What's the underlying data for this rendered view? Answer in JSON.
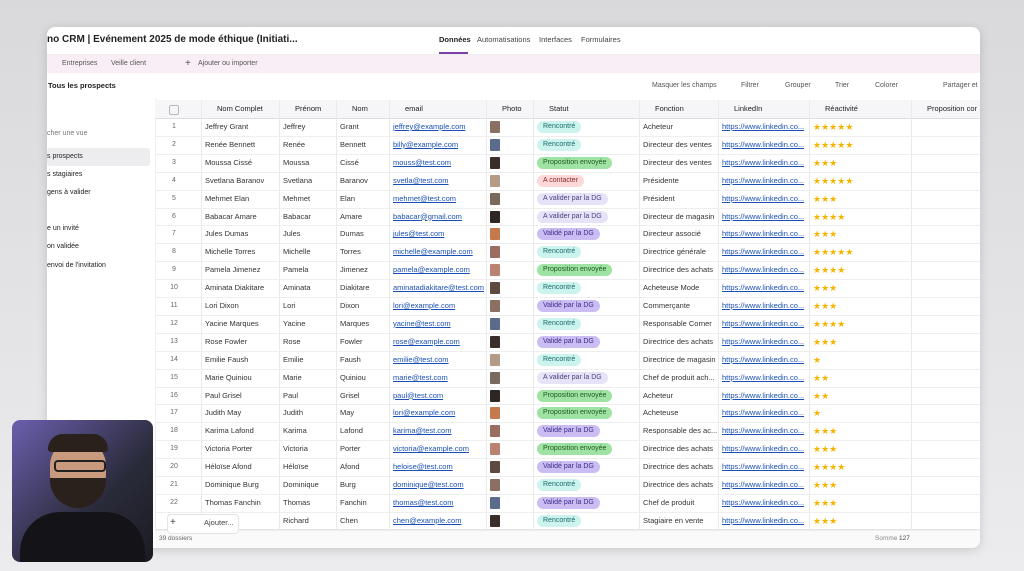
{
  "header": {
    "title": "no CRM | Evénement 2025 de mode éthique (Initiati...",
    "tabs": [
      "Données",
      "Automatisations",
      "Interfaces",
      "Formulaires"
    ]
  },
  "subnav": {
    "items": [
      "Entreprises",
      "Veille client"
    ],
    "add": "Ajouter ou importer"
  },
  "toolbar": {
    "view": "Tous les prospects",
    "actions": [
      "Masquer les champs",
      "Filtrer",
      "Grouper",
      "Trier",
      "Colorer",
      "Partager et"
    ]
  },
  "sidebar": {
    "search": "cher une vue",
    "views": [
      "s prospects",
      "s stagiaires",
      "gens à valider",
      "e un invité",
      "on validée",
      "envoi de l'invitation"
    ]
  },
  "table": {
    "columns": [
      "Nom Complet",
      "Prénom",
      "Nom",
      "email",
      "Photo",
      "Statut",
      "Fonction",
      "LinkedIn",
      "Réactivité",
      "Proposition cor"
    ],
    "rows": [
      [
        "1",
        "Jeffrey Grant",
        "Jeffrey",
        "Grant",
        "jeffrey@example.com",
        "Rencontré",
        "Acheteur",
        "https://www.linkedin.co...",
        5
      ],
      [
        "2",
        "Renée Bennett",
        "Renée",
        "Bennett",
        "billy@example.com",
        "Rencontré",
        "Directeur des ventes",
        "https://www.linkedin.co...",
        5
      ],
      [
        "3",
        "Moussa Cissé",
        "Moussa",
        "Cissé",
        "mouss@test.com",
        "Proposition envoyée",
        "Directeur des ventes",
        "https://www.linkedin.co...",
        3
      ],
      [
        "4",
        "Svetlana Baranov",
        "Svetlana",
        "Baranov",
        "svetla@test.com",
        "A contacter",
        "Présidente",
        "https://www.linkedin.co...",
        5
      ],
      [
        "5",
        "Mehmet Elan",
        "Mehmet",
        "Elan",
        "mehmet@test.com",
        "A valider par la DG",
        "Président",
        "https://www.linkedin.co...",
        3
      ],
      [
        "6",
        "Babacar Amare",
        "Babacar",
        "Amare",
        "babacar@gmail.com",
        "A valider par la DG",
        "Directeur de magasin",
        "https://www.linkedin.co...",
        4
      ],
      [
        "7",
        "Jules Dumas",
        "Jules",
        "Dumas",
        "jules@test.com",
        "Validé par la DG",
        "Directeur associé",
        "https://www.linkedin.co...",
        3
      ],
      [
        "8",
        "Michelle Torres",
        "Michelle",
        "Torres",
        "michelle@example.com",
        "Rencontré",
        "Directrice générale",
        "https://www.linkedin.co...",
        5
      ],
      [
        "9",
        "Pamela Jimenez",
        "Pamela",
        "Jimenez",
        "pamela@example.com",
        "Proposition envoyée",
        "Directrice des achats",
        "https://www.linkedin.co...",
        4
      ],
      [
        "10",
        "Aminata Diakitare",
        "Aminata",
        "Diakitare",
        "aminatadiakitare@test.com",
        "Rencontré",
        "Acheteuse Mode",
        "https://www.linkedin.co...",
        3
      ],
      [
        "11",
        "Lori Dixon",
        "Lori",
        "Dixon",
        "lori@example.com",
        "Validé par la DG",
        "Commerçante",
        "https://www.linkedin.co...",
        3
      ],
      [
        "12",
        "Yacine Marques",
        "Yacine",
        "Marques",
        "yacine@test.com",
        "Rencontré",
        "Responsable Corner",
        "https://www.linkedin.co...",
        4
      ],
      [
        "13",
        "Rose Fowler",
        "Rose",
        "Fowler",
        "rose@example.com",
        "Validé par la DG",
        "Directrice des achats",
        "https://www.linkedin.co...",
        3
      ],
      [
        "14",
        "Emilie Faush",
        "Emilie",
        "Faush",
        "emilie@test.com",
        "Rencontré",
        "Directrice de magasin",
        "https://www.linkedin.co...",
        1
      ],
      [
        "15",
        "Marie Quiniou",
        "Marie",
        "Quiniou",
        "marie@test.com",
        "A valider par la DG",
        "Chef de produit ach...",
        "https://www.linkedin.co...",
        2
      ],
      [
        "16",
        "Paul Grisel",
        "Paul",
        "Grisel",
        "paul@test.com",
        "Proposition envoyée",
        "Acheteur",
        "https://www.linkedin.co...",
        2
      ],
      [
        "17",
        "Judith May",
        "Judith",
        "May",
        "lori@example.com",
        "Proposition envoyée",
        "Acheteuse",
        "https://www.linkedin.co...",
        1
      ],
      [
        "18",
        "Karima Lafond",
        "Karima",
        "Lafond",
        "karima@test.com",
        "Validé par la DG",
        "Responsable des ac...",
        "https://www.linkedin.co...",
        3
      ],
      [
        "19",
        "Victoria Porter",
        "Victoria",
        "Porter",
        "victoria@example.com",
        "Proposition envoyée",
        "Directrice des achats",
        "https://www.linkedin.co...",
        3
      ],
      [
        "20",
        "Héloïse Afond",
        "Héloïse",
        "Afond",
        "heloise@test.com",
        "Validé par la DG",
        "Directrice des achats",
        "https://www.linkedin.co...",
        4
      ],
      [
        "21",
        "Dominique Burg",
        "Dominique",
        "Burg",
        "dominique@test.com",
        "Rencontré",
        "Directrice des achats",
        "https://www.linkedin.co...",
        3
      ],
      [
        "22",
        "Thomas Fanchin",
        "Thomas",
        "Fanchin",
        "thomas@test.com",
        "Validé par la DG",
        "Chef de produit",
        "https://www.linkedin.co...",
        3
      ],
      [
        "",
        "en",
        "Richard",
        "Chen",
        "chen@example.com",
        "Rencontré",
        "Stagiaire en vente",
        "https://www.linkedin.co...",
        3
      ]
    ]
  },
  "footer": {
    "add": "Ajouter...",
    "count": "39 dossiers",
    "sum_label": "Somme",
    "sum": "127"
  }
}
